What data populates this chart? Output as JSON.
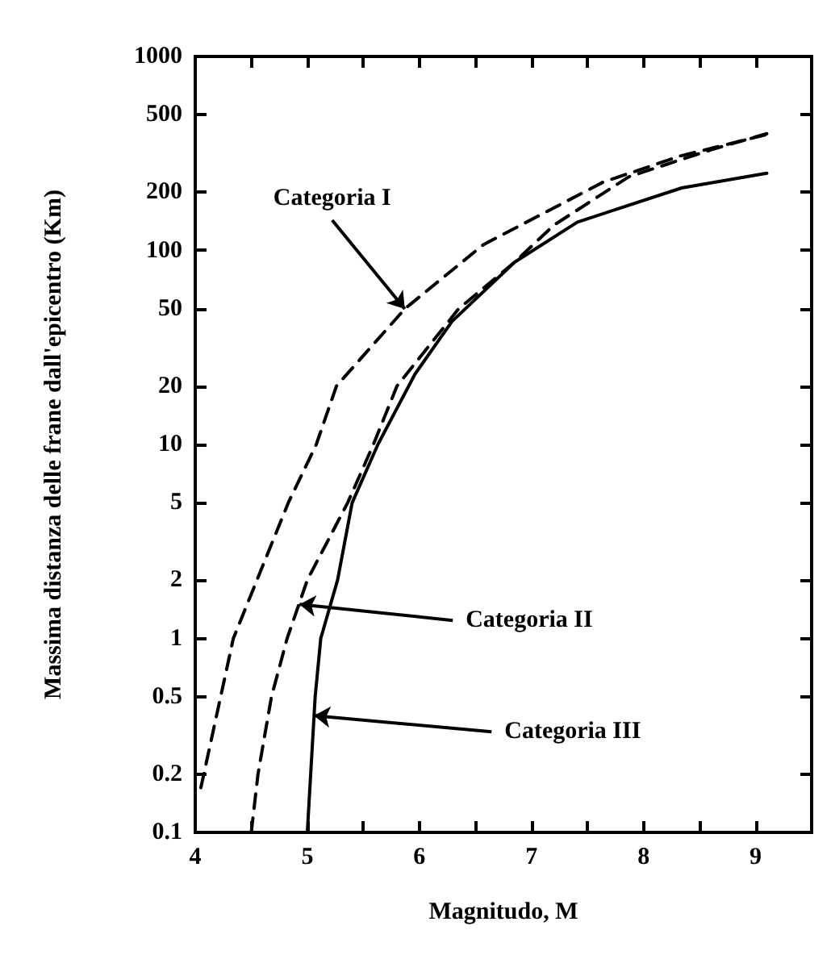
{
  "chart_data": {
    "type": "line",
    "xlabel": "Magnitudo, M",
    "ylabel": "Massima distanza delle frane dall'epicentro (Km)",
    "log": "y",
    "grid": false,
    "marker": "none",
    "xlim": [
      4,
      9.5
    ],
    "ylim": [
      0.1,
      1000
    ],
    "xticks": [
      4,
      {
        "value": 4.5,
        "label": null
      },
      5,
      {
        "value": 5.5,
        "label": null
      },
      6,
      {
        "value": 6.5,
        "label": null
      },
      7,
      {
        "value": 7.5,
        "label": null
      },
      8,
      {
        "value": 8.5,
        "label": null
      },
      9
    ],
    "yticks": [
      0.1,
      0.2,
      0.5,
      1,
      2,
      5,
      10,
      20,
      50,
      100,
      200,
      500,
      1000
    ],
    "series": [
      {
        "color": "#000000",
        "line_style": "dashed",
        "x": [
          4.05,
          4.34,
          4.83,
          5.08,
          5.26,
          5.87,
          6.57,
          7.64,
          8.33,
          9.13
        ],
        "values": [
          0.17,
          1,
          5,
          10,
          20,
          50,
          107,
          225,
          307,
          400
        ]
      },
      {
        "color": "#000000",
        "line_style": "dashed",
        "x": [
          4.5,
          4.56,
          4.68,
          4.82,
          5.0,
          5.36,
          5.59,
          5.8,
          6.35,
          6.85,
          7.2,
          7.87,
          8.6,
          9.1
        ],
        "values": [
          0.1,
          0.2,
          0.5,
          1,
          2,
          5,
          10,
          20,
          50,
          87,
          135,
          240,
          330,
          400
        ]
      },
      {
        "color": "#000000",
        "line_style": "solid",
        "x": [
          5.0,
          5.07,
          5.12,
          5.27,
          5.4,
          5.63,
          5.96,
          6.29,
          6.85,
          7.41,
          8.34,
          9.1
        ],
        "values": [
          0.1,
          0.5,
          1,
          2,
          5,
          10,
          23,
          43,
          87,
          140,
          210,
          250
        ]
      }
    ],
    "annotations": [
      {
        "text": "Categoria I",
        "x": 5.87,
        "y": 50
      },
      {
        "text": "Categoria II",
        "x": 4.93,
        "y": 1.5
      },
      {
        "text": "Categoria III",
        "x": 5.06,
        "y": 0.4
      }
    ]
  }
}
